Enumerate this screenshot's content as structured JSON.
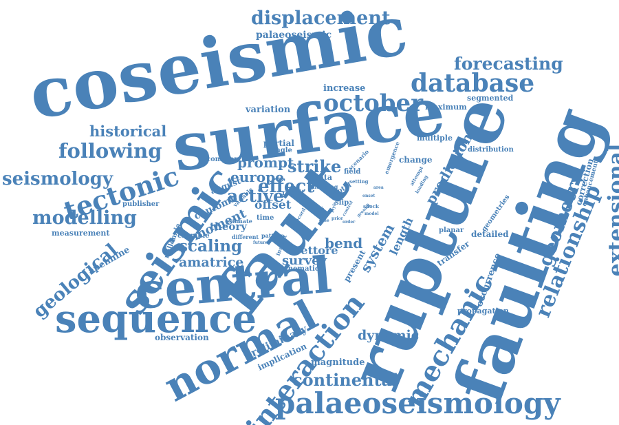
{
  "word_color": "#4a82b8",
  "words": [
    "coseismic",
    "surface",
    "faulting",
    "rupture",
    "fault",
    "central",
    "sequence",
    "normal",
    "seismic",
    "palaeoseismology",
    "interaction",
    "mechanic",
    "database",
    "october",
    "forecasting",
    "displacement",
    "relationship",
    "extensional",
    "geometry",
    "tectonic",
    "following",
    "modelling",
    "seismology",
    "historical",
    "geological",
    "strike",
    "effect",
    "active",
    "europe",
    "prompt",
    "scaling",
    "amatrice",
    "continental",
    "dynamic",
    "bend",
    "survey",
    "vettore",
    "offset",
    "moment",
    "theory",
    "coulomb",
    "palaeoseismic",
    "increase",
    "maximum",
    "segmented",
    "variation",
    "partial",
    "single",
    "multiple",
    "prediction",
    "distribution",
    "correction",
    "enhancement",
    "complex",
    "august",
    "apennine",
    "example",
    "millennia",
    "measurement",
    "publisher",
    "observation",
    "preliminary",
    "implication",
    "magnitude",
    "propagation",
    "occurrence",
    "transfer",
    "detailed",
    "geometries",
    "planar",
    "length",
    "system",
    "present",
    "data",
    "field",
    "change",
    "kinematic",
    "result",
    "time",
    "estimate",
    "different",
    "pattern",
    "insight",
    "variable",
    "scenario",
    "total",
    "slip",
    "emergence",
    "mapping",
    "record",
    "setting",
    "shock",
    "study",
    "attempt",
    "loading",
    "onset",
    "model",
    "vector",
    "ground",
    "order",
    "prior",
    "future",
    "control",
    "sector",
    "area",
    "case",
    "style"
  ]
}
